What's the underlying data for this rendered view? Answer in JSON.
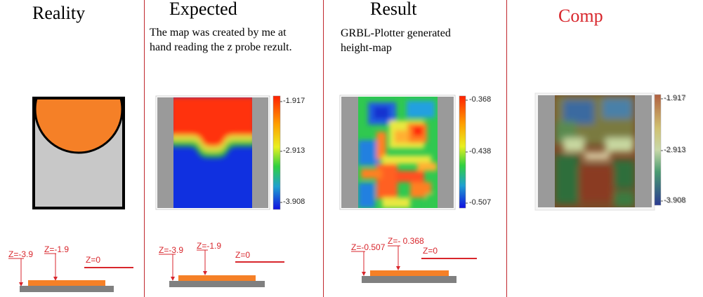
{
  "panels": {
    "reality": {
      "title": "Reality"
    },
    "expected": {
      "title": "Expected",
      "caption_line1": "The map was created by me at",
      "caption_line2": "hand reading the z probe rezult.",
      "legend": {
        "max": "-1.917",
        "mid": "-2.913",
        "min": "-3.908"
      }
    },
    "result": {
      "title": "Result",
      "caption_line1": "GRBL-Plotter generated",
      "caption_line2": "height-map",
      "legend": {
        "max": "-0.368",
        "mid": "-0.438",
        "min": "-0.507"
      }
    },
    "comp": {
      "title": "Comp",
      "legend": {
        "max": "-1.917",
        "mid": "-2.913",
        "min": "-3.908"
      }
    }
  },
  "probe_diagrams": {
    "reality": {
      "z_low": "Z=-3.9",
      "z_mid": "Z=-1.9",
      "z_zero": "Z=0"
    },
    "expected": {
      "z_low": "Z=-3.9",
      "z_mid": "Z=-1.9",
      "z_zero": "Z=0"
    },
    "result": {
      "z_low": "Z=-0.507",
      "z_mid": "Z=- 0.368",
      "z_zero": "Z=0"
    }
  },
  "colors": {
    "divider": "#c0272d",
    "label_red": "#d8262c",
    "workpiece_orange": "#f58027",
    "base_gray": "#808080",
    "reality_gray": "#c8c8c8"
  }
}
